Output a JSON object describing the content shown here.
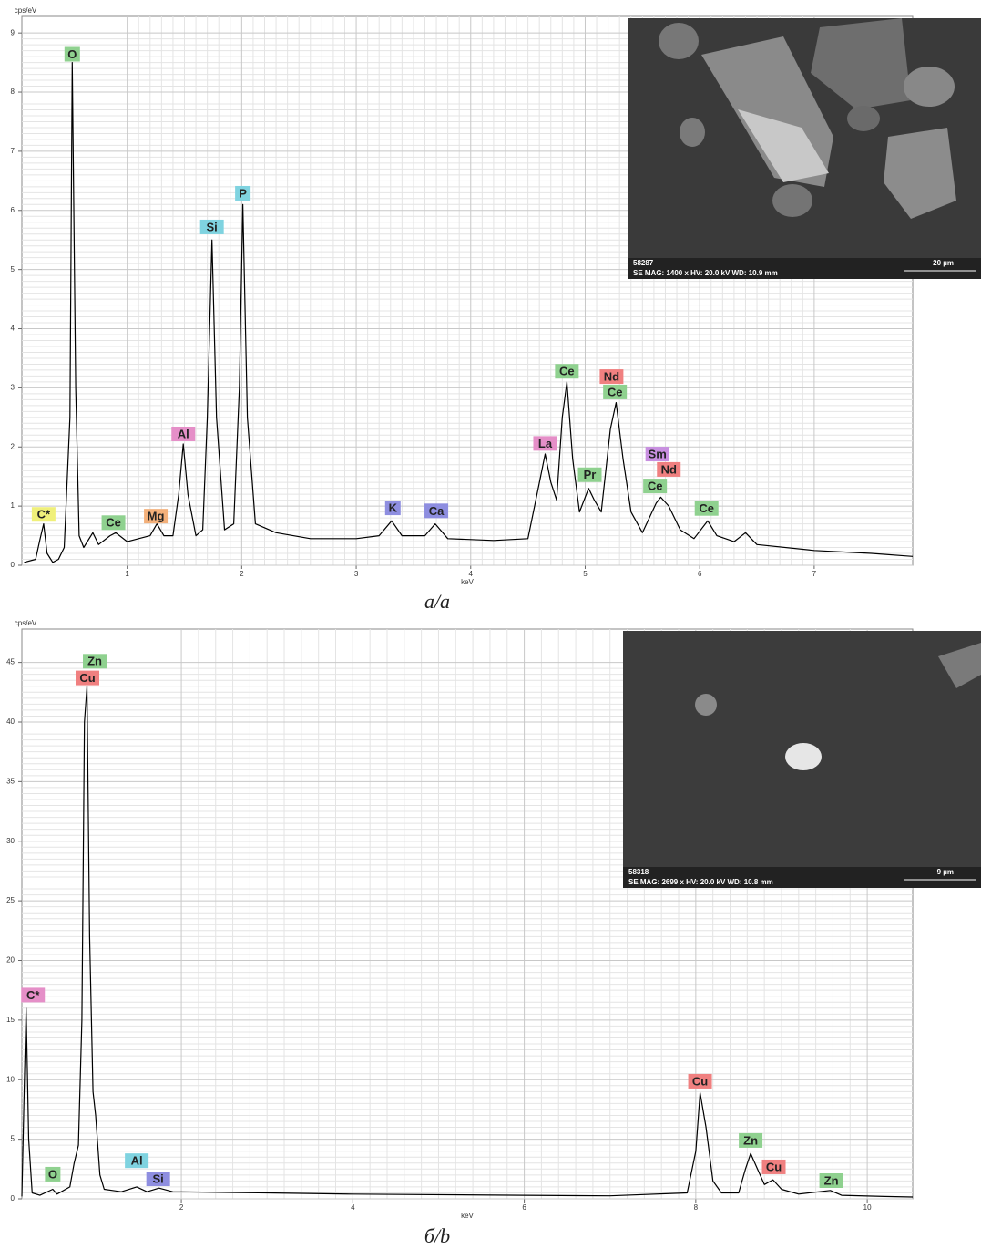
{
  "chart_data": [
    {
      "type": "line",
      "y_label": "cps/eV",
      "x_label": "keV",
      "caption": "а/a",
      "color": "#000000",
      "grid": true,
      "xlim": [
        0.08,
        7.86
      ],
      "ylim": [
        0,
        9.28
      ],
      "xticks": [
        1,
        2,
        3,
        4,
        5,
        6,
        7
      ],
      "yticks": [
        0,
        1,
        2,
        3,
        4,
        5,
        6,
        7,
        8,
        9
      ],
      "x": [
        0.1,
        0.2,
        0.24,
        0.27,
        0.3,
        0.35,
        0.4,
        0.45,
        0.5,
        0.52,
        0.55,
        0.58,
        0.62,
        0.7,
        0.75,
        0.85,
        0.9,
        1.0,
        1.1,
        1.2,
        1.26,
        1.32,
        1.4,
        1.45,
        1.49,
        1.53,
        1.6,
        1.66,
        1.7,
        1.74,
        1.78,
        1.85,
        1.93,
        1.98,
        2.01,
        2.05,
        2.12,
        2.3,
        2.6,
        3.0,
        3.2,
        3.31,
        3.4,
        3.6,
        3.69,
        3.8,
        4.2,
        4.5,
        4.6,
        4.65,
        4.7,
        4.75,
        4.8,
        4.84,
        4.89,
        4.95,
        5.03,
        5.08,
        5.14,
        5.22,
        5.27,
        5.33,
        5.4,
        5.5,
        5.62,
        5.66,
        5.73,
        5.83,
        5.95,
        6.07,
        6.15,
        6.3,
        6.4,
        6.5,
        7.0,
        7.5,
        7.86
      ],
      "values": [
        0.05,
        0.1,
        0.45,
        0.7,
        0.2,
        0.05,
        0.1,
        0.3,
        2.5,
        8.5,
        3,
        0.5,
        0.3,
        0.55,
        0.35,
        0.5,
        0.55,
        0.4,
        0.45,
        0.5,
        0.7,
        0.5,
        0.5,
        1.2,
        2.05,
        1.2,
        0.5,
        0.6,
        2.5,
        5.5,
        2.5,
        0.6,
        0.7,
        3,
        6.1,
        2.5,
        0.7,
        0.55,
        0.45,
        0.45,
        0.5,
        0.75,
        0.5,
        0.5,
        0.7,
        0.45,
        0.42,
        0.45,
        1.4,
        1.88,
        1.4,
        1.1,
        2.5,
        3.1,
        1.8,
        0.9,
        1.3,
        1.1,
        0.9,
        2.3,
        2.75,
        1.8,
        0.9,
        0.55,
        1.05,
        1.15,
        1.0,
        0.6,
        0.45,
        0.75,
        0.5,
        0.4,
        0.55,
        0.35,
        0.25,
        0.2,
        0.15
      ],
      "annotations": [
        {
          "text": "O",
          "x": 0.52,
          "y": 8.64,
          "color": "#8fd18f"
        },
        {
          "text": "Si",
          "x": 1.74,
          "y": 5.72,
          "color": "#7fd3e0"
        },
        {
          "text": "P",
          "x": 2.01,
          "y": 6.29,
          "color": "#7fd3e0"
        },
        {
          "text": "Al",
          "x": 1.49,
          "y": 2.22,
          "color": "#e58fc8"
        },
        {
          "text": "C*",
          "x": 0.27,
          "y": 0.86,
          "color": "#f0f07a"
        },
        {
          "text": "Ce",
          "x": 0.88,
          "y": 0.72,
          "color": "#8fd18f"
        },
        {
          "text": "Mg",
          "x": 1.25,
          "y": 0.83,
          "color": "#f3b07a"
        },
        {
          "text": "K",
          "x": 3.32,
          "y": 0.97,
          "color": "#8e8ee0"
        },
        {
          "text": "Ca",
          "x": 3.7,
          "y": 0.92,
          "color": "#8e8ee0"
        },
        {
          "text": "La",
          "x": 4.65,
          "y": 2.06,
          "color": "#e58fc8"
        },
        {
          "text": "Ce",
          "x": 4.84,
          "y": 3.28,
          "color": "#8fd18f"
        },
        {
          "text": "Nd",
          "x": 5.23,
          "y": 3.19,
          "color": "#f08080"
        },
        {
          "text": "Ce",
          "x": 5.26,
          "y": 2.93,
          "color": "#8fd18f"
        },
        {
          "text": "Pr",
          "x": 5.04,
          "y": 1.53,
          "color": "#8fd18f"
        },
        {
          "text": "Sm",
          "x": 5.63,
          "y": 1.88,
          "color": "#c88fe0"
        },
        {
          "text": "Nd",
          "x": 5.73,
          "y": 1.62,
          "color": "#f08080"
        },
        {
          "text": "Ce",
          "x": 5.61,
          "y": 1.34,
          "color": "#8fd18f"
        },
        {
          "text": "Ce",
          "x": 6.06,
          "y": 0.96,
          "color": "#8fd18f"
        }
      ],
      "inset": {
        "id": "58287",
        "info": "SE  MAG: 1400 x  HV: 20.0 kV  WD: 10.9 mm",
        "scale": "20 µm"
      }
    },
    {
      "type": "line",
      "y_label": "cps/eV",
      "x_label": "keV",
      "caption": "б/b",
      "color": "#000000",
      "grid": true,
      "xlim": [
        0.14,
        10.53
      ],
      "ylim": [
        0,
        47.8
      ],
      "xticks": [
        2,
        4,
        6,
        8,
        10
      ],
      "yticks": [
        0,
        5,
        10,
        15,
        20,
        25,
        30,
        35,
        40,
        45
      ],
      "x": [
        0.14,
        0.17,
        0.19,
        0.22,
        0.26,
        0.35,
        0.5,
        0.55,
        0.7,
        0.75,
        0.8,
        0.84,
        0.87,
        0.9,
        0.93,
        0.97,
        1.0,
        1.05,
        1.1,
        1.3,
        1.48,
        1.6,
        1.74,
        1.9,
        3,
        4,
        6,
        7,
        7.9,
        8.0,
        8.05,
        8.12,
        8.2,
        8.3,
        8.5,
        8.58,
        8.64,
        8.72,
        8.8,
        8.9,
        9.0,
        9.2,
        9.57,
        9.7,
        10.2,
        10.53
      ],
      "values": [
        0.2,
        10,
        16,
        5,
        0.5,
        0.3,
        0.8,
        0.4,
        1,
        3,
        4.5,
        15,
        40,
        43,
        22,
        9,
        7,
        2,
        0.8,
        0.6,
        1,
        0.6,
        0.9,
        0.6,
        0.5,
        0.4,
        0.3,
        0.25,
        0.5,
        4,
        8.9,
        6,
        1.5,
        0.5,
        0.5,
        2.5,
        3.8,
        2.5,
        1.2,
        1.6,
        0.8,
        0.4,
        0.7,
        0.3,
        0.2,
        0.15
      ],
      "annotations": [
        {
          "text": "Zn",
          "x": 0.99,
          "y": 45.1,
          "color": "#8fd18f"
        },
        {
          "text": "Cu",
          "x": 0.905,
          "y": 43.7,
          "color": "#f08080"
        },
        {
          "text": "C*",
          "x": 0.27,
          "y": 17.1,
          "color": "#e58fc8"
        },
        {
          "text": "O",
          "x": 0.5,
          "y": 2.07,
          "color": "#8fd18f"
        },
        {
          "text": "Al",
          "x": 1.48,
          "y": 3.2,
          "color": "#7fd3e0"
        },
        {
          "text": "Si",
          "x": 1.73,
          "y": 1.68,
          "color": "#8e8ee0"
        },
        {
          "text": "Cu",
          "x": 8.05,
          "y": 9.87,
          "color": "#f08080"
        },
        {
          "text": "Zn",
          "x": 8.64,
          "y": 4.9,
          "color": "#8fd18f"
        },
        {
          "text": "Cu",
          "x": 8.91,
          "y": 2.68,
          "color": "#f08080"
        },
        {
          "text": "Zn",
          "x": 9.58,
          "y": 1.53,
          "color": "#8fd18f"
        }
      ],
      "inset": {
        "id": "58318",
        "info": "SE  MAG: 2699 x  HV: 20.0 kV  WD: 10.8 mm",
        "scale": "9 µm"
      }
    }
  ]
}
